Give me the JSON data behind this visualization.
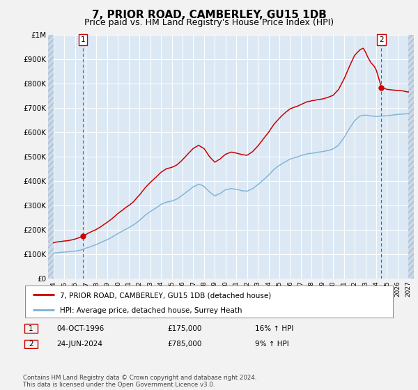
{
  "title": "7, PRIOR ROAD, CAMBERLEY, GU15 1DB",
  "subtitle": "Price paid vs. HM Land Registry's House Price Index (HPI)",
  "ylabel_ticks": [
    "£0",
    "£100K",
    "£200K",
    "£300K",
    "£400K",
    "£500K",
    "£600K",
    "£700K",
    "£800K",
    "£900K",
    "£1M"
  ],
  "ytick_values": [
    0,
    100000,
    200000,
    300000,
    400000,
    500000,
    600000,
    700000,
    800000,
    900000,
    1000000
  ],
  "ylim": [
    0,
    1000000
  ],
  "xlim_start": 1993.5,
  "xlim_end": 2027.5,
  "xticks": [
    1994,
    1995,
    1996,
    1997,
    1998,
    1999,
    2000,
    2001,
    2002,
    2003,
    2004,
    2005,
    2006,
    2007,
    2008,
    2009,
    2010,
    2011,
    2012,
    2013,
    2014,
    2015,
    2016,
    2017,
    2018,
    2019,
    2020,
    2021,
    2022,
    2023,
    2024,
    2025,
    2026,
    2027
  ],
  "plot_bg_color": "#dce9f5",
  "outer_bg_color": "#f2f2f2",
  "hatch_color": "#c0d0e0",
  "grid_color": "#ffffff",
  "line_red_color": "#cc0000",
  "line_blue_color": "#7ab0d4",
  "point1_x": 1996.75,
  "point1_y": 175000,
  "point2_x": 2024.48,
  "point2_y": 785000,
  "legend_red_label": "7, PRIOR ROAD, CAMBERLEY, GU15 1DB (detached house)",
  "legend_blue_label": "HPI: Average price, detached house, Surrey Heath",
  "table_row1": [
    "1",
    "04-OCT-1996",
    "£175,000",
    "16% ↑ HPI"
  ],
  "table_row2": [
    "2",
    "24-JUN-2024",
    "£785,000",
    "9% ↑ HPI"
  ],
  "footer": "Contains HM Land Registry data © Crown copyright and database right 2024.\nThis data is licensed under the Open Government Licence v3.0.",
  "title_fontsize": 11,
  "subtitle_fontsize": 9,
  "hpi_base_values": [
    [
      1994.0,
      105000
    ],
    [
      1994.5,
      108000
    ],
    [
      1995.0,
      110000
    ],
    [
      1995.5,
      112000
    ],
    [
      1996.0,
      115000
    ],
    [
      1996.5,
      120000
    ],
    [
      1997.0,
      128000
    ],
    [
      1997.5,
      135000
    ],
    [
      1998.0,
      143000
    ],
    [
      1998.5,
      152000
    ],
    [
      1999.0,
      163000
    ],
    [
      1999.5,
      175000
    ],
    [
      2000.0,
      188000
    ],
    [
      2000.5,
      200000
    ],
    [
      2001.0,
      212000
    ],
    [
      2001.5,
      225000
    ],
    [
      2002.0,
      242000
    ],
    [
      2002.5,
      262000
    ],
    [
      2003.0,
      278000
    ],
    [
      2003.5,
      292000
    ],
    [
      2004.0,
      308000
    ],
    [
      2004.5,
      318000
    ],
    [
      2005.0,
      322000
    ],
    [
      2005.5,
      330000
    ],
    [
      2006.0,
      345000
    ],
    [
      2006.5,
      362000
    ],
    [
      2007.0,
      378000
    ],
    [
      2007.5,
      388000
    ],
    [
      2008.0,
      378000
    ],
    [
      2008.5,
      355000
    ],
    [
      2009.0,
      338000
    ],
    [
      2009.5,
      348000
    ],
    [
      2010.0,
      362000
    ],
    [
      2010.5,
      368000
    ],
    [
      2011.0,
      365000
    ],
    [
      2011.5,
      360000
    ],
    [
      2012.0,
      358000
    ],
    [
      2012.5,
      368000
    ],
    [
      2013.0,
      385000
    ],
    [
      2013.5,
      405000
    ],
    [
      2014.0,
      425000
    ],
    [
      2014.5,
      448000
    ],
    [
      2015.0,
      465000
    ],
    [
      2015.5,
      480000
    ],
    [
      2016.0,
      492000
    ],
    [
      2016.5,
      498000
    ],
    [
      2017.0,
      505000
    ],
    [
      2017.5,
      512000
    ],
    [
      2018.0,
      515000
    ],
    [
      2018.5,
      518000
    ],
    [
      2019.0,
      520000
    ],
    [
      2019.5,
      525000
    ],
    [
      2020.0,
      532000
    ],
    [
      2020.5,
      548000
    ],
    [
      2021.0,
      578000
    ],
    [
      2021.5,
      615000
    ],
    [
      2022.0,
      648000
    ],
    [
      2022.5,
      668000
    ],
    [
      2023.0,
      672000
    ],
    [
      2023.5,
      668000
    ],
    [
      2024.0,
      665000
    ],
    [
      2024.5,
      668000
    ],
    [
      2025.0,
      670000
    ],
    [
      2025.5,
      672000
    ],
    [
      2026.0,
      675000
    ],
    [
      2026.5,
      676000
    ],
    [
      2027.0,
      677000
    ]
  ],
  "red_base_values": [
    [
      1994.0,
      148000
    ],
    [
      1994.5,
      152000
    ],
    [
      1995.0,
      155000
    ],
    [
      1995.5,
      158000
    ],
    [
      1996.0,
      163000
    ],
    [
      1996.5,
      170000
    ],
    [
      1996.75,
      175000
    ],
    [
      1997.0,
      181000
    ],
    [
      1997.5,
      191000
    ],
    [
      1998.0,
      202000
    ],
    [
      1998.5,
      215000
    ],
    [
      1999.0,
      230000
    ],
    [
      1999.5,
      247000
    ],
    [
      2000.0,
      266000
    ],
    [
      2000.5,
      283000
    ],
    [
      2001.0,
      300000
    ],
    [
      2001.5,
      318000
    ],
    [
      2002.0,
      342000
    ],
    [
      2002.5,
      370000
    ],
    [
      2003.0,
      393000
    ],
    [
      2003.5,
      413000
    ],
    [
      2004.0,
      435000
    ],
    [
      2004.5,
      450000
    ],
    [
      2005.0,
      455000
    ],
    [
      2005.5,
      466000
    ],
    [
      2006.0,
      487000
    ],
    [
      2006.5,
      511000
    ],
    [
      2007.0,
      534000
    ],
    [
      2007.5,
      548000
    ],
    [
      2008.0,
      534000
    ],
    [
      2008.5,
      501000
    ],
    [
      2009.0,
      477000
    ],
    [
      2009.5,
      491000
    ],
    [
      2010.0,
      511000
    ],
    [
      2010.5,
      520000
    ],
    [
      2011.0,
      515000
    ],
    [
      2011.5,
      508000
    ],
    [
      2012.0,
      506000
    ],
    [
      2012.5,
      520000
    ],
    [
      2013.0,
      544000
    ],
    [
      2013.5,
      572000
    ],
    [
      2014.0,
      600000
    ],
    [
      2014.5,
      633000
    ],
    [
      2015.0,
      657000
    ],
    [
      2015.5,
      678000
    ],
    [
      2016.0,
      695000
    ],
    [
      2016.5,
      703000
    ],
    [
      2017.0,
      713000
    ],
    [
      2017.5,
      723000
    ],
    [
      2018.0,
      728000
    ],
    [
      2018.5,
      732000
    ],
    [
      2019.0,
      735000
    ],
    [
      2019.5,
      742000
    ],
    [
      2020.0,
      751000
    ],
    [
      2020.5,
      774000
    ],
    [
      2021.0,
      816000
    ],
    [
      2021.5,
      868000
    ],
    [
      2022.0,
      915000
    ],
    [
      2022.5,
      938000
    ],
    [
      2022.8,
      945000
    ],
    [
      2023.0,
      930000
    ],
    [
      2023.2,
      910000
    ],
    [
      2023.5,
      885000
    ],
    [
      2023.8,
      870000
    ],
    [
      2024.0,
      855000
    ],
    [
      2024.48,
      785000
    ],
    [
      2024.7,
      780000
    ],
    [
      2025.0,
      775000
    ],
    [
      2025.5,
      772000
    ],
    [
      2026.0,
      770000
    ],
    [
      2026.5,
      768000
    ],
    [
      2027.0,
      765000
    ]
  ]
}
